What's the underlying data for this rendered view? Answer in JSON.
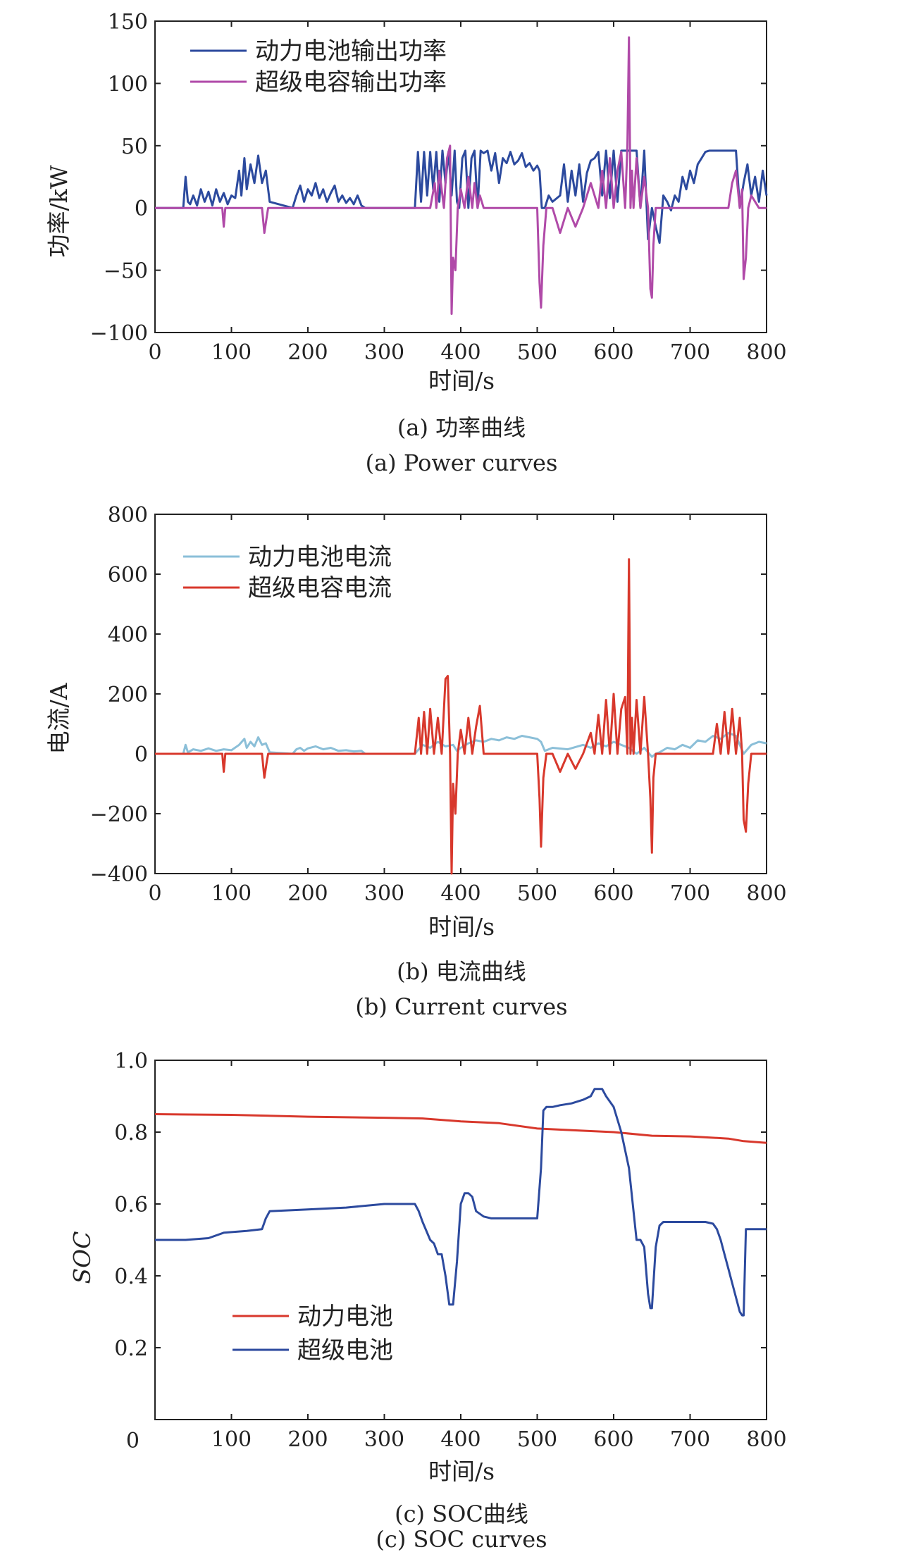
{
  "chart_data": [
    {
      "type": "line",
      "caption_cn": "(a) 功率曲线",
      "caption_en": "(a) Power curves",
      "xlabel": "时间/s",
      "ylabel": "功率/kW",
      "xlim": [
        0,
        800
      ],
      "ylim": [
        -100,
        150
      ],
      "xticks": [
        0,
        100,
        200,
        300,
        400,
        500,
        600,
        700,
        800
      ],
      "yticks": [
        -100,
        -50,
        0,
        50,
        100,
        150
      ],
      "legend_position": "top-left",
      "series": [
        {
          "name": "动力电池输出功率",
          "color": "#2c4a9e",
          "x": [
            0,
            37,
            40,
            43,
            46,
            50,
            55,
            60,
            65,
            70,
            75,
            80,
            85,
            90,
            95,
            100,
            105,
            110,
            113,
            117,
            120,
            125,
            130,
            135,
            140,
            145,
            150,
            180,
            185,
            190,
            195,
            200,
            205,
            210,
            215,
            220,
            225,
            230,
            235,
            240,
            245,
            250,
            255,
            260,
            265,
            270,
            275,
            340,
            344,
            348,
            352,
            356,
            360,
            364,
            368,
            372,
            376,
            380,
            384,
            388,
            392,
            395,
            398,
            402,
            406,
            410,
            414,
            418,
            422,
            426,
            430,
            435,
            440,
            445,
            450,
            455,
            460,
            465,
            470,
            475,
            480,
            485,
            490,
            495,
            500,
            503,
            506,
            510,
            515,
            520,
            530,
            535,
            540,
            545,
            550,
            555,
            560,
            565,
            570,
            575,
            580,
            585,
            590,
            595,
            600,
            605,
            610,
            615,
            620,
            625,
            630,
            635,
            640,
            645,
            650,
            655,
            660,
            665,
            670,
            675,
            680,
            685,
            690,
            695,
            700,
            705,
            710,
            715,
            720,
            725,
            730,
            740,
            750,
            760,
            765,
            770,
            775,
            780,
            785,
            790,
            795,
            800
          ],
          "y": [
            0,
            0,
            25,
            5,
            3,
            10,
            2,
            15,
            5,
            13,
            2,
            15,
            5,
            12,
            3,
            10,
            8,
            30,
            10,
            40,
            15,
            35,
            20,
            42,
            20,
            30,
            5,
            0,
            10,
            18,
            5,
            15,
            10,
            20,
            8,
            15,
            5,
            12,
            18,
            5,
            10,
            4,
            8,
            3,
            10,
            2,
            0,
            0,
            45,
            5,
            45,
            10,
            45,
            15,
            45,
            5,
            46,
            20,
            45,
            10,
            46,
            5,
            0,
            40,
            46,
            0,
            40,
            46,
            0,
            46,
            44,
            46,
            30,
            44,
            20,
            40,
            36,
            45,
            35,
            38,
            44,
            33,
            36,
            30,
            34,
            30,
            0,
            0,
            10,
            5,
            10,
            35,
            5,
            30,
            10,
            35,
            5,
            28,
            38,
            40,
            45,
            10,
            46,
            8,
            46,
            5,
            46,
            46,
            46,
            46,
            46,
            0,
            46,
            -25,
            0,
            -15,
            -28,
            10,
            5,
            -2,
            10,
            5,
            25,
            15,
            30,
            20,
            35,
            40,
            45,
            46,
            46,
            46,
            46,
            46,
            0,
            20,
            35,
            10,
            25,
            5,
            30,
            10
          ]
        },
        {
          "name": "超级电容输出功率",
          "color": "#b04aa8",
          "x": [
            0,
            88,
            90,
            92,
            95,
            140,
            143,
            146,
            148,
            152,
            360,
            366,
            368,
            372,
            378,
            382,
            386,
            388,
            390,
            393,
            396,
            400,
            405,
            410,
            415,
            418,
            422,
            425,
            430,
            440,
            500,
            503,
            505,
            508,
            512,
            520,
            530,
            540,
            550,
            560,
            570,
            580,
            585,
            590,
            595,
            600,
            605,
            610,
            615,
            618,
            620,
            622,
            624,
            626,
            630,
            635,
            640,
            645,
            648,
            650,
            652,
            655,
            660,
            700,
            750,
            755,
            760,
            765,
            768,
            770,
            773,
            776,
            780,
            790,
            800
          ],
          "y": [
            0,
            0,
            -15,
            0,
            0,
            0,
            -20,
            -8,
            0,
            0,
            0,
            20,
            0,
            30,
            0,
            40,
            50,
            -85,
            -40,
            -50,
            0,
            15,
            0,
            25,
            0,
            20,
            0,
            10,
            0,
            0,
            0,
            -60,
            -80,
            -30,
            0,
            0,
            -20,
            0,
            -15,
            0,
            20,
            0,
            30,
            0,
            40,
            0,
            30,
            45,
            0,
            50,
            137,
            0,
            30,
            0,
            40,
            0,
            25,
            0,
            -65,
            -72,
            -30,
            0,
            0,
            0,
            0,
            20,
            30,
            0,
            15,
            -57,
            -40,
            0,
            10,
            0,
            0
          ]
        }
      ]
    },
    {
      "type": "line",
      "caption_cn": "(b) 电流曲线",
      "caption_en": "(b) Current curves",
      "xlabel": "时间/s",
      "ylabel": "电流/A",
      "xlim": [
        0,
        800
      ],
      "ylim": [
        -400,
        800
      ],
      "xticks": [
        0,
        100,
        200,
        300,
        400,
        500,
        600,
        700,
        800
      ],
      "yticks": [
        -400,
        -200,
        0,
        200,
        400,
        600,
        800
      ],
      "legend_position": "top-left",
      "series": [
        {
          "name": "动力电池电流",
          "color": "#8bbfd8",
          "x": [
            0,
            37,
            40,
            43,
            50,
            60,
            70,
            80,
            90,
            100,
            110,
            117,
            120,
            125,
            130,
            135,
            140,
            145,
            150,
            180,
            185,
            190,
            195,
            200,
            210,
            220,
            230,
            240,
            250,
            260,
            270,
            275,
            340,
            350,
            360,
            370,
            380,
            390,
            395,
            400,
            410,
            420,
            430,
            440,
            450,
            460,
            470,
            480,
            490,
            500,
            505,
            510,
            520,
            540,
            560,
            570,
            580,
            590,
            600,
            610,
            620,
            630,
            640,
            650,
            655,
            660,
            670,
            680,
            690,
            700,
            710,
            720,
            730,
            740,
            750,
            760,
            770,
            780,
            790,
            800
          ],
          "y": [
            0,
            0,
            30,
            5,
            15,
            10,
            18,
            10,
            15,
            12,
            30,
            50,
            20,
            40,
            25,
            55,
            30,
            35,
            5,
            0,
            15,
            20,
            10,
            18,
            25,
            15,
            20,
            10,
            12,
            8,
            10,
            0,
            0,
            30,
            20,
            40,
            25,
            30,
            10,
            20,
            35,
            45,
            40,
            50,
            45,
            55,
            50,
            60,
            55,
            50,
            40,
            10,
            20,
            15,
            30,
            20,
            35,
            25,
            40,
            30,
            20,
            0,
            20,
            -10,
            0,
            5,
            20,
            15,
            30,
            20,
            45,
            40,
            60,
            50,
            70,
            60,
            0,
            30,
            40,
            35
          ]
        },
        {
          "name": "超级电容电流",
          "color": "#d8382c",
          "x": [
            0,
            88,
            90,
            92,
            95,
            140,
            143,
            146,
            148,
            152,
            340,
            345,
            348,
            352,
            356,
            360,
            365,
            370,
            375,
            380,
            383,
            386,
            388,
            390,
            393,
            396,
            400,
            405,
            410,
            415,
            420,
            425,
            430,
            440,
            500,
            503,
            505,
            508,
            512,
            520,
            530,
            540,
            550,
            560,
            570,
            575,
            580,
            585,
            590,
            595,
            600,
            605,
            610,
            615,
            618,
            620,
            622,
            624,
            626,
            630,
            635,
            640,
            645,
            648,
            650,
            652,
            655,
            660,
            700,
            730,
            735,
            740,
            745,
            750,
            755,
            760,
            765,
            768,
            770,
            773,
            776,
            780,
            790,
            800
          ],
          "y": [
            0,
            0,
            -60,
            0,
            0,
            0,
            -80,
            -30,
            0,
            0,
            0,
            120,
            0,
            140,
            0,
            150,
            0,
            120,
            0,
            250,
            260,
            0,
            -400,
            -100,
            -200,
            0,
            80,
            0,
            120,
            0,
            90,
            160,
            0,
            0,
            0,
            -150,
            -310,
            -80,
            0,
            0,
            -60,
            0,
            -50,
            0,
            70,
            0,
            130,
            0,
            180,
            0,
            200,
            0,
            150,
            190,
            0,
            650,
            0,
            120,
            0,
            180,
            0,
            190,
            0,
            -150,
            -330,
            -80,
            0,
            0,
            0,
            0,
            100,
            0,
            140,
            0,
            150,
            0,
            120,
            0,
            -220,
            -260,
            -100,
            0,
            0,
            0
          ]
        }
      ]
    },
    {
      "type": "line",
      "caption_cn": "(c) SOC曲线",
      "caption_en": "(c) SOC curves",
      "xlabel": "时间/s",
      "ylabel": "SOC",
      "xlim": [
        0,
        800
      ],
      "ylim": [
        0,
        1.0
      ],
      "xticks": [
        100,
        200,
        300,
        400,
        500,
        600,
        700,
        800
      ],
      "ytick_labels": [
        "0.2",
        "0.4",
        "0.6",
        "0.8",
        "1.0"
      ],
      "yticks": [
        0.2,
        0.4,
        0.6,
        0.8,
        1.0
      ],
      "origin_label": "0",
      "legend_position": "lower-left",
      "series": [
        {
          "name": "动力电池",
          "color": "#d8382c",
          "x": [
            0,
            100,
            200,
            300,
            350,
            400,
            450,
            500,
            550,
            600,
            650,
            700,
            750,
            770,
            800
          ],
          "y": [
            0.85,
            0.848,
            0.843,
            0.84,
            0.838,
            0.83,
            0.825,
            0.81,
            0.805,
            0.8,
            0.79,
            0.788,
            0.782,
            0.775,
            0.77
          ]
        },
        {
          "name": "超级电池",
          "color": "#2c4a9e",
          "x": [
            0,
            40,
            70,
            90,
            120,
            140,
            145,
            150,
            200,
            250,
            300,
            340,
            345,
            350,
            360,
            365,
            370,
            375,
            380,
            385,
            390,
            395,
            400,
            405,
            410,
            415,
            420,
            430,
            440,
            500,
            505,
            508,
            512,
            520,
            530,
            545,
            560,
            570,
            575,
            580,
            585,
            590,
            600,
            610,
            620,
            630,
            635,
            640,
            645,
            648,
            650,
            655,
            660,
            665,
            700,
            720,
            730,
            735,
            740,
            745,
            750,
            755,
            760,
            765,
            768,
            770,
            773,
            775,
            780,
            800
          ],
          "y": [
            0.5,
            0.5,
            0.505,
            0.52,
            0.525,
            0.53,
            0.56,
            0.58,
            0.585,
            0.59,
            0.6,
            0.6,
            0.58,
            0.55,
            0.5,
            0.49,
            0.46,
            0.46,
            0.4,
            0.32,
            0.32,
            0.44,
            0.6,
            0.63,
            0.63,
            0.62,
            0.58,
            0.565,
            0.56,
            0.56,
            0.7,
            0.86,
            0.87,
            0.87,
            0.875,
            0.88,
            0.89,
            0.9,
            0.92,
            0.92,
            0.92,
            0.9,
            0.87,
            0.8,
            0.7,
            0.5,
            0.5,
            0.48,
            0.35,
            0.31,
            0.31,
            0.48,
            0.54,
            0.55,
            0.55,
            0.55,
            0.545,
            0.53,
            0.5,
            0.46,
            0.42,
            0.38,
            0.34,
            0.3,
            0.29,
            0.29,
            0.53,
            0.53,
            0.53,
            0.53
          ]
        }
      ]
    }
  ]
}
